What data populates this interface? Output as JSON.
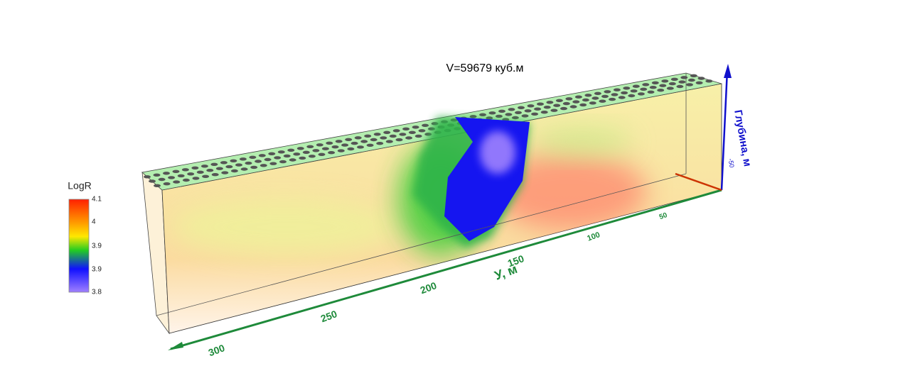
{
  "title": "V=59679 куб.м",
  "colorbar": {
    "label": "LogR",
    "ticks": [
      "4.1",
      "4",
      "3.9",
      "3.9",
      "3.8"
    ]
  },
  "y_axis": {
    "label": "У, м",
    "ticks": [
      "300",
      "250",
      "200",
      "150",
      "100",
      "50"
    ]
  },
  "depth_axis": {
    "label": "Глубина, м",
    "ticks": [
      "-50"
    ]
  }
}
